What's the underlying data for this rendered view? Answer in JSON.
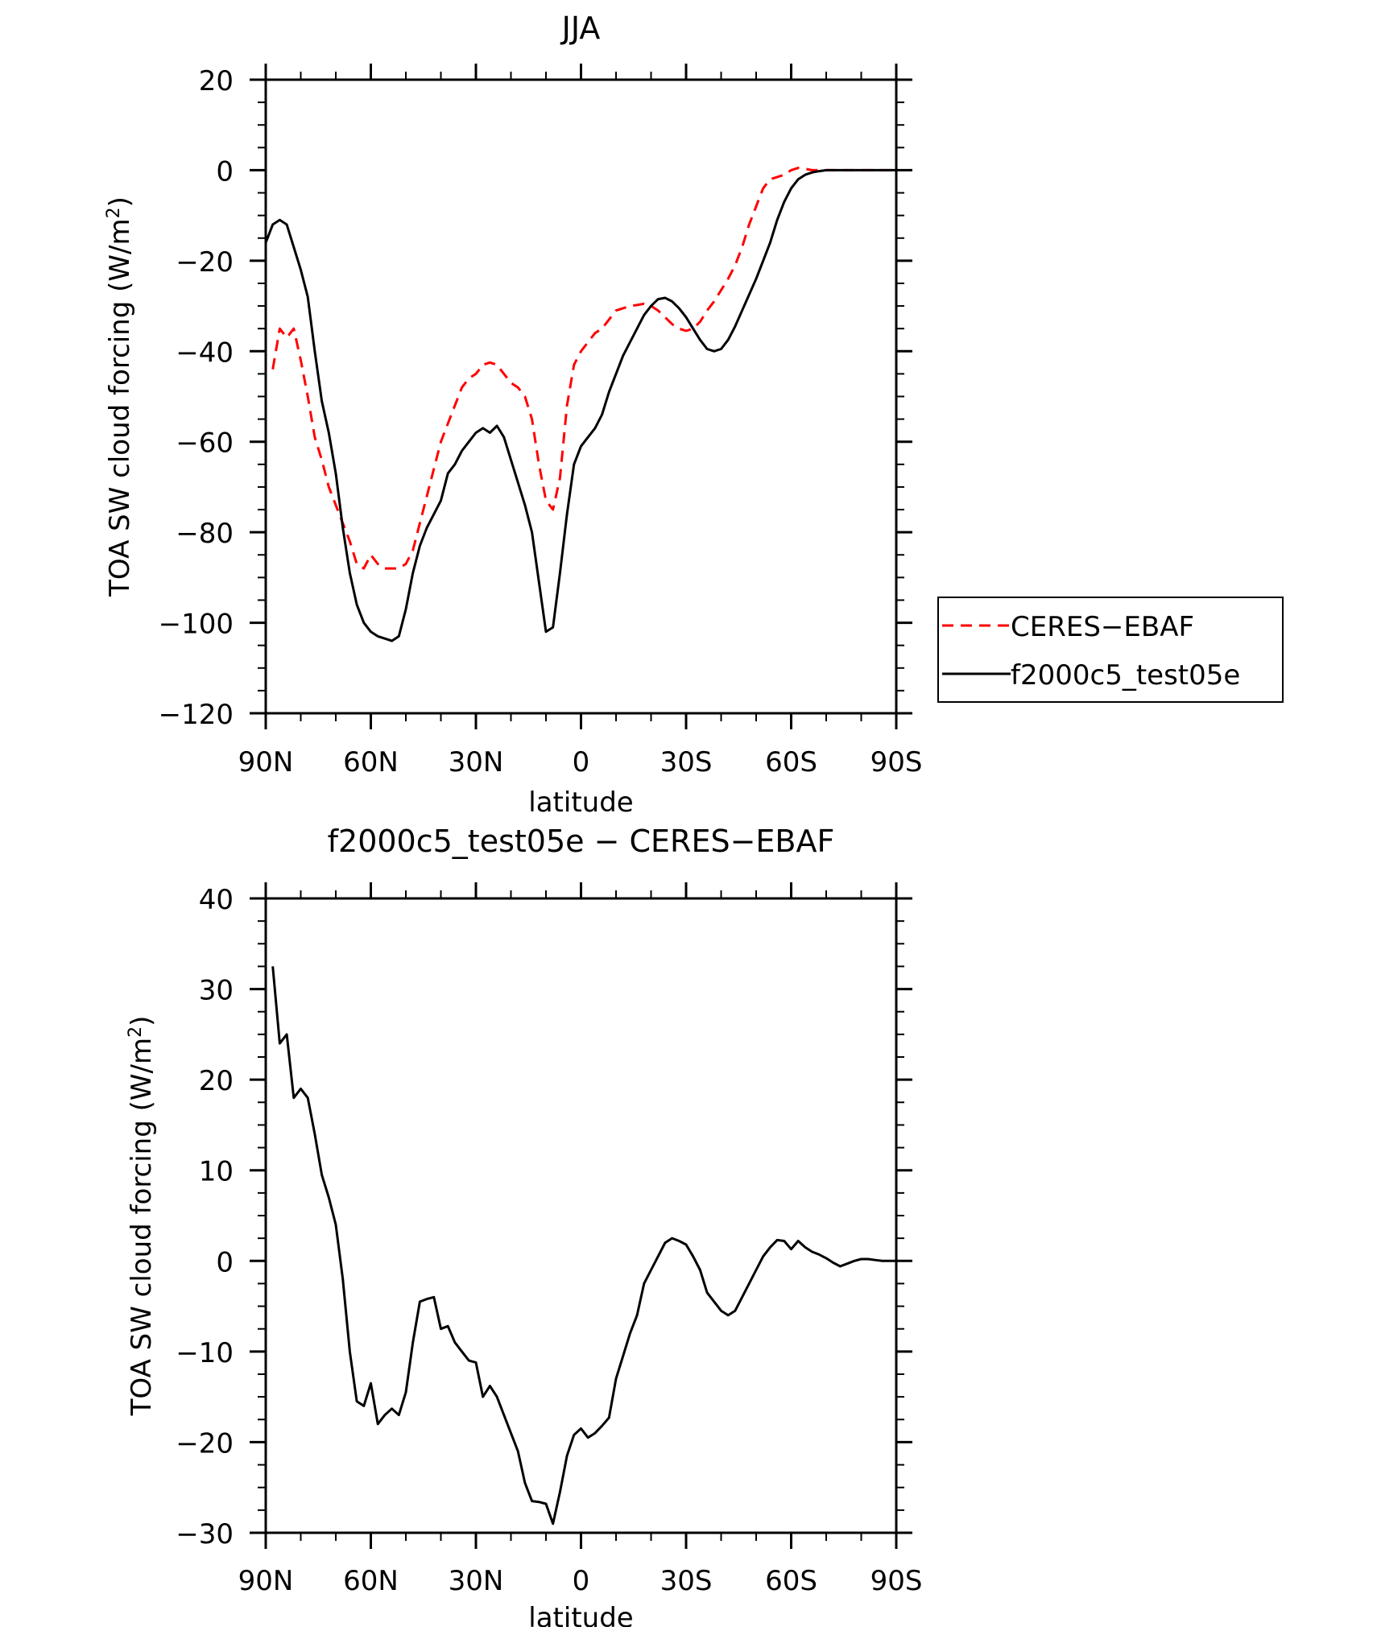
{
  "chart_data": [
    {
      "type": "line",
      "title": "JJA",
      "xlabel": "latitude",
      "ylabel_main": "TOA SW cloud forcing (W/m",
      "ylabel_sup": "2",
      "ylabel_close": ")",
      "xlim": [
        90,
        -90
      ],
      "ylim": [
        -120,
        20
      ],
      "x_ticks": [
        90,
        60,
        30,
        0,
        -30,
        -60,
        -90
      ],
      "x_tick_labels": [
        "90N",
        "60N",
        "30N",
        "0",
        "30S",
        "60S",
        "90S"
      ],
      "y_ticks": [
        20,
        0,
        -20,
        -40,
        -60,
        -80,
        -100,
        -120
      ],
      "y_tick_labels": [
        "20",
        "0",
        "−20",
        "−40",
        "−60",
        "−80",
        "−100",
        "−120"
      ],
      "legend_position": "right",
      "series": [
        {
          "name": "CERES−EBAF",
          "color": "#ff0000",
          "dash": "dashed",
          "x": [
            88,
            86,
            84,
            82,
            80,
            78,
            76,
            74,
            72,
            70,
            68,
            66,
            64,
            62,
            60,
            58,
            56,
            54,
            52,
            50,
            48,
            46,
            44,
            42,
            40,
            38,
            36,
            34,
            32,
            30,
            28,
            26,
            24,
            22,
            20,
            18,
            16,
            14,
            12,
            10,
            8,
            6,
            4,
            2,
            0,
            -2,
            -4,
            -6,
            -8,
            -10,
            -12,
            -14,
            -16,
            -18,
            -20,
            -22,
            -24,
            -26,
            -28,
            -30,
            -32,
            -34,
            -36,
            -38,
            -40,
            -42,
            -44,
            -46,
            -48,
            -50,
            -52,
            -54,
            -56,
            -58,
            -60,
            -62,
            -64,
            -66,
            -68,
            -70,
            -72,
            -74,
            -76,
            -78,
            -80,
            -82,
            -84,
            -86,
            -88,
            -90
          ],
          "y": [
            -44,
            -35,
            -37,
            -35,
            -42,
            -50,
            -59,
            -64,
            -70,
            -74,
            -78,
            -82,
            -87,
            -88,
            -85,
            -87,
            -88,
            -88,
            -88,
            -87,
            -84,
            -78,
            -72,
            -66,
            -60,
            -56,
            -52,
            -48,
            -46,
            -45,
            -43,
            -42.5,
            -43,
            -45,
            -47,
            -48,
            -50,
            -55,
            -65,
            -73,
            -75,
            -68,
            -52,
            -43,
            -40,
            -38,
            -36,
            -35,
            -33,
            -31,
            -30.5,
            -30,
            -29.8,
            -29.5,
            -30,
            -31,
            -32.5,
            -34,
            -35,
            -35.5,
            -35,
            -33.5,
            -31,
            -29,
            -26.5,
            -24,
            -21,
            -17,
            -12,
            -8,
            -4,
            -2,
            -1.5,
            -1,
            0,
            0.5,
            0.3,
            0,
            0,
            0,
            0,
            0,
            0,
            0,
            0,
            0,
            0,
            0,
            0,
            0
          ]
        },
        {
          "name": "f2000c5_test05e",
          "color": "#000000",
          "dash": "solid",
          "x": [
            90,
            88,
            86,
            84,
            82,
            80,
            78,
            76,
            74,
            72,
            70,
            68,
            66,
            64,
            62,
            60,
            58,
            56,
            54,
            52,
            50,
            48,
            46,
            44,
            42,
            40,
            38,
            36,
            34,
            32,
            30,
            28,
            26,
            24,
            22,
            20,
            18,
            16,
            14,
            12,
            10,
            8,
            6,
            4,
            2,
            0,
            -2,
            -4,
            -6,
            -8,
            -10,
            -12,
            -14,
            -16,
            -18,
            -20,
            -22,
            -24,
            -26,
            -28,
            -30,
            -32,
            -34,
            -36,
            -38,
            -40,
            -42,
            -44,
            -46,
            -48,
            -50,
            -52,
            -54,
            -56,
            -58,
            -60,
            -62,
            -64,
            -66,
            -68,
            -70,
            -72,
            -74,
            -76,
            -78,
            -80,
            -82,
            -84,
            -86,
            -88,
            -90
          ],
          "y": [
            -16,
            -12,
            -11,
            -12,
            -17,
            -22,
            -28,
            -40,
            -51,
            -58,
            -67,
            -79,
            -89,
            -96,
            -100,
            -102,
            -103,
            -103.5,
            -104,
            -103,
            -97,
            -89,
            -83,
            -79,
            -76,
            -73,
            -67,
            -65,
            -62,
            -60,
            -58,
            -57,
            -58,
            -56.5,
            -59,
            -64,
            -69,
            -74,
            -80,
            -91,
            -102,
            -101,
            -89,
            -76,
            -65,
            -61,
            -59,
            -57,
            -54,
            -49,
            -45,
            -41,
            -38,
            -35,
            -32,
            -30,
            -28.5,
            -28.2,
            -29,
            -30.5,
            -32.5,
            -35,
            -37.5,
            -39.5,
            -40,
            -39.5,
            -37.5,
            -34.5,
            -31,
            -27.5,
            -24,
            -20,
            -16,
            -11,
            -7,
            -4,
            -2,
            -1,
            -0.5,
            -0.2,
            0,
            0,
            0,
            0,
            0,
            0,
            0,
            0,
            0,
            0,
            0
          ]
        }
      ]
    },
    {
      "type": "line",
      "title": "f2000c5_test05e − CERES−EBAF",
      "xlabel": "latitude",
      "ylabel_main": "TOA SW cloud forcing (W/m",
      "ylabel_sup": "2",
      "ylabel_close": ")",
      "xlim": [
        90,
        -90
      ],
      "ylim": [
        -30,
        40
      ],
      "x_ticks": [
        90,
        60,
        30,
        0,
        -30,
        -60,
        -90
      ],
      "x_tick_labels": [
        "90N",
        "60N",
        "30N",
        "0",
        "30S",
        "60S",
        "90S"
      ],
      "y_ticks": [
        40,
        30,
        20,
        10,
        0,
        -10,
        -20,
        -30
      ],
      "y_tick_labels": [
        "40",
        "30",
        "20",
        "10",
        "0",
        "−10",
        "−20",
        "−30"
      ],
      "series": [
        {
          "color": "#000000",
          "dash": "solid",
          "x": [
            88,
            86,
            84,
            82,
            80,
            78,
            76,
            74,
            72,
            70,
            68,
            66,
            64,
            62,
            60,
            58,
            56,
            54,
            52,
            50,
            48,
            46,
            44,
            42,
            40,
            38,
            36,
            34,
            32,
            30,
            28,
            26,
            24,
            22,
            20,
            18,
            16,
            14,
            12,
            10,
            8,
            6,
            4,
            2,
            0,
            -2,
            -4,
            -6,
            -8,
            -10,
            -12,
            -14,
            -16,
            -18,
            -20,
            -22,
            -24,
            -26,
            -28,
            -30,
            -32,
            -34,
            -36,
            -38,
            -40,
            -42,
            -44,
            -46,
            -48,
            -50,
            -52,
            -54,
            -56,
            -58,
            -60,
            -62,
            -64,
            -66,
            -68,
            -70,
            -72,
            -74,
            -76,
            -78,
            -80,
            -82,
            -84,
            -86,
            -88,
            -90
          ],
          "y": [
            32.5,
            24,
            25,
            18,
            19,
            18,
            14,
            9.5,
            7,
            4,
            -2,
            -10,
            -15.5,
            -16,
            -13.5,
            -18,
            -17,
            -16.3,
            -17,
            -14.5,
            -9,
            -4.5,
            -4.2,
            -4,
            -7.5,
            -7.2,
            -9,
            -10,
            -11,
            -11.2,
            -15,
            -13.8,
            -15,
            -17,
            -19,
            -21,
            -24.5,
            -26.5,
            -26.6,
            -26.8,
            -29,
            -25.5,
            -21.5,
            -19.2,
            -18.5,
            -19.5,
            -19,
            -18.2,
            -17.3,
            -13,
            -10.5,
            -8,
            -6,
            -2.5,
            -1,
            0.5,
            2,
            2.5,
            2.2,
            1.8,
            0.5,
            -1,
            -3.5,
            -4.5,
            -5.5,
            -6,
            -5.5,
            -4,
            -2.5,
            -1,
            0.5,
            1.5,
            2.3,
            2.2,
            1.3,
            2.2,
            1.5,
            1,
            0.7,
            0.3,
            -0.2,
            -0.6,
            -0.3,
            0,
            0.2,
            0.2,
            0.1,
            0,
            0,
            0
          ]
        }
      ]
    }
  ]
}
